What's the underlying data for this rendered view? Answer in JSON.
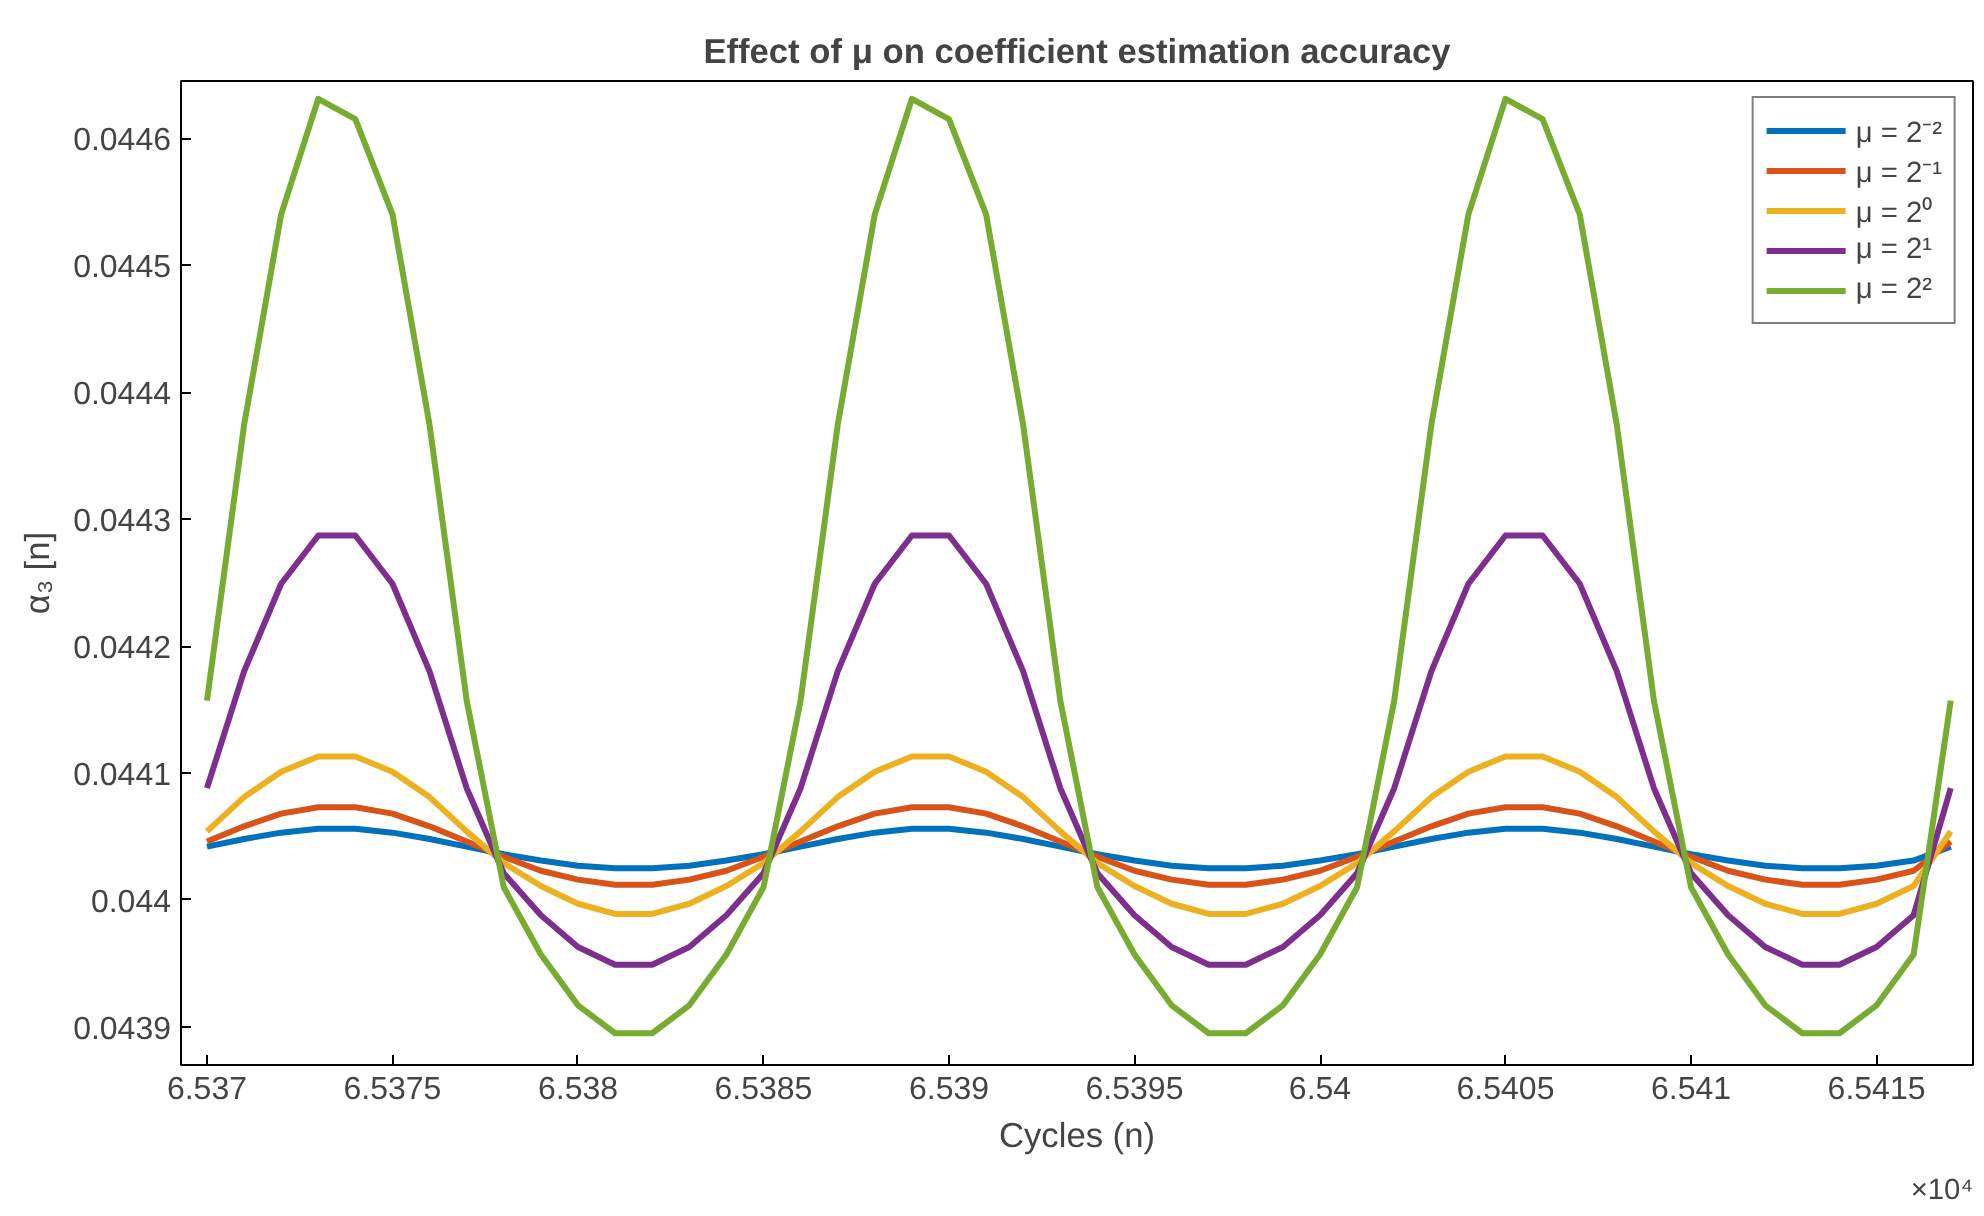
{
  "chart_data": {
    "type": "line",
    "title": "Effect of μ on coefficient estimation accuracy",
    "xlabel": "Cycles (n)",
    "ylabel": "α₃ [n]",
    "annotations": [
      "×10⁴"
    ],
    "x": [
      6.537,
      6.5371,
      6.5372,
      6.5373,
      6.5374,
      6.5375,
      6.5376,
      6.5377,
      6.5378,
      6.5379,
      6.538,
      6.5381,
      6.5382,
      6.5383,
      6.5384,
      6.5385,
      6.5386,
      6.5387,
      6.5388,
      6.5389,
      6.539,
      6.5391,
      6.5392,
      6.5393,
      6.5394,
      6.5395,
      6.5396,
      6.5397,
      6.5398,
      6.5399,
      6.54,
      6.5401,
      6.5402,
      6.5403,
      6.5404,
      6.5405,
      6.5406,
      6.5407,
      6.5408,
      6.5409,
      6.541,
      6.5411,
      6.5412,
      6.5413,
      6.5414,
      6.5415,
      6.5416,
      6.5417
    ],
    "xlim": [
      6.53693,
      6.54176
    ],
    "xticks": [
      6.537,
      6.5375,
      6.538,
      6.5385,
      6.539,
      6.5395,
      6.54,
      6.5405,
      6.541,
      6.5415
    ],
    "ylim": [
      0.04387,
      0.044645
    ],
    "yticks": [
      0.0439,
      0.044,
      0.0441,
      0.0442,
      0.0443,
      0.0444,
      0.0445,
      0.0446
    ],
    "legend": "top right",
    "grid": false,
    "marker": "none",
    "line_style": "solid",
    "series": [
      {
        "name": "μ = 2⁻²",
        "color": "#0072bd",
        "values": [
          0.044042,
          0.044048,
          0.044053,
          0.044056,
          0.044056,
          0.044053,
          0.044048,
          0.044042,
          0.044036,
          0.044031,
          0.044027,
          0.044025,
          0.044025,
          0.044027,
          0.044031,
          0.044036,
          0.044042,
          0.044048,
          0.044053,
          0.044056,
          0.044056,
          0.044053,
          0.044048,
          0.044042,
          0.044036,
          0.044031,
          0.044027,
          0.044025,
          0.044025,
          0.044027,
          0.044031,
          0.044036,
          0.044042,
          0.044048,
          0.044053,
          0.044056,
          0.044056,
          0.044053,
          0.044048,
          0.044042,
          0.044036,
          0.044031,
          0.044027,
          0.044025,
          0.044025,
          0.044027,
          0.044031,
          0.044042
        ]
      },
      {
        "name": "μ = 2⁻¹",
        "color": "#d95319",
        "values": [
          0.044046,
          0.044058,
          0.044068,
          0.044073,
          0.044073,
          0.044068,
          0.044058,
          0.044046,
          0.044034,
          0.044023,
          0.044016,
          0.044012,
          0.044012,
          0.044016,
          0.044023,
          0.044034,
          0.044046,
          0.044058,
          0.044068,
          0.044073,
          0.044073,
          0.044068,
          0.044058,
          0.044046,
          0.044034,
          0.044023,
          0.044016,
          0.044012,
          0.044012,
          0.044016,
          0.044023,
          0.044034,
          0.044046,
          0.044058,
          0.044068,
          0.044073,
          0.044073,
          0.044068,
          0.044058,
          0.044046,
          0.044034,
          0.044023,
          0.044016,
          0.044012,
          0.044012,
          0.044016,
          0.044023,
          0.044046
        ]
      },
      {
        "name": "μ = 2⁰",
        "color": "#edb120",
        "values": [
          0.044054,
          0.044081,
          0.044101,
          0.044113,
          0.044113,
          0.044101,
          0.044081,
          0.044054,
          0.044029,
          0.044011,
          0.043997,
          0.043989,
          0.043989,
          0.043997,
          0.044011,
          0.044029,
          0.044054,
          0.044081,
          0.044101,
          0.044113,
          0.044113,
          0.044101,
          0.044081,
          0.044054,
          0.044029,
          0.044011,
          0.043997,
          0.043989,
          0.043989,
          0.043997,
          0.044011,
          0.044029,
          0.044054,
          0.044081,
          0.044101,
          0.044113,
          0.044113,
          0.044101,
          0.044081,
          0.044054,
          0.044029,
          0.044011,
          0.043997,
          0.043989,
          0.043989,
          0.043997,
          0.044011,
          0.044054
        ]
      },
      {
        "name": "μ = 2¹",
        "color": "#7e2f8e",
        "values": [
          0.044088,
          0.04418,
          0.044249,
          0.044287,
          0.044287,
          0.044249,
          0.04418,
          0.044088,
          0.044021,
          0.043988,
          0.043963,
          0.043949,
          0.043949,
          0.043963,
          0.043988,
          0.044021,
          0.044088,
          0.04418,
          0.044249,
          0.044287,
          0.044287,
          0.044249,
          0.04418,
          0.044088,
          0.044021,
          0.043988,
          0.043963,
          0.043949,
          0.043949,
          0.043963,
          0.043988,
          0.044021,
          0.044088,
          0.04418,
          0.044249,
          0.044287,
          0.044287,
          0.044249,
          0.04418,
          0.044088,
          0.044021,
          0.043988,
          0.043963,
          0.043949,
          0.043949,
          0.043963,
          0.043988,
          0.044088
        ]
      },
      {
        "name": "μ = 2²",
        "color": "#77ac30",
        "values": [
          0.044157,
          0.044374,
          0.04454,
          0.044631,
          0.044615,
          0.04454,
          0.044374,
          0.044157,
          0.04401,
          0.043957,
          0.043917,
          0.043895,
          0.043895,
          0.043917,
          0.043957,
          0.04401,
          0.044157,
          0.044374,
          0.04454,
          0.044631,
          0.044615,
          0.04454,
          0.044374,
          0.044157,
          0.04401,
          0.043957,
          0.043917,
          0.043895,
          0.043895,
          0.043917,
          0.043957,
          0.04401,
          0.044157,
          0.044374,
          0.04454,
          0.044631,
          0.044615,
          0.04454,
          0.044374,
          0.044157,
          0.04401,
          0.043957,
          0.043917,
          0.043895,
          0.043895,
          0.043917,
          0.043957,
          0.044157
        ]
      }
    ]
  }
}
